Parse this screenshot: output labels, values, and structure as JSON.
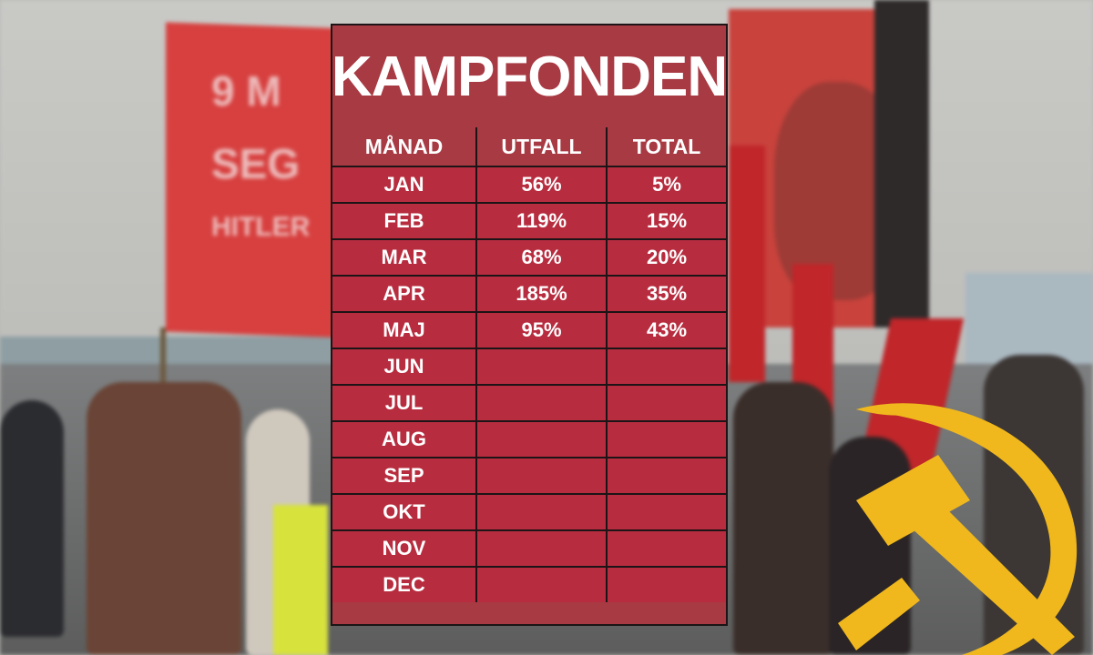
{
  "title": "KAMPFONDEN",
  "background": {
    "banner_left_lines": [
      "9 M",
      "SEG",
      "HITLER"
    ]
  },
  "table": {
    "headers": [
      "MÅNAD",
      "UTFALL",
      "TOTAL"
    ],
    "rows": [
      {
        "month": "JAN",
        "utfall": "56%",
        "total": "5%"
      },
      {
        "month": "FEB",
        "utfall": "119%",
        "total": "15%"
      },
      {
        "month": "MAR",
        "utfall": "68%",
        "total": "20%"
      },
      {
        "month": "APR",
        "utfall": "185%",
        "total": "35%"
      },
      {
        "month": "MAJ",
        "utfall": "95%",
        "total": "43%"
      },
      {
        "month": "JUN",
        "utfall": "",
        "total": ""
      },
      {
        "month": "JUL",
        "utfall": "",
        "total": ""
      },
      {
        "month": "AUG",
        "utfall": "",
        "total": ""
      },
      {
        "month": "SEP",
        "utfall": "",
        "total": ""
      },
      {
        "month": "OKT",
        "utfall": "",
        "total": ""
      },
      {
        "month": "NOV",
        "utfall": "",
        "total": ""
      },
      {
        "month": "DEC",
        "utfall": "",
        "total": ""
      }
    ]
  },
  "colors": {
    "panel": "#a83a43",
    "cell": "#b72d3f",
    "emblem": "#f0b81d"
  },
  "icons": {
    "emblem": "hammer-and-sickle-icon"
  }
}
